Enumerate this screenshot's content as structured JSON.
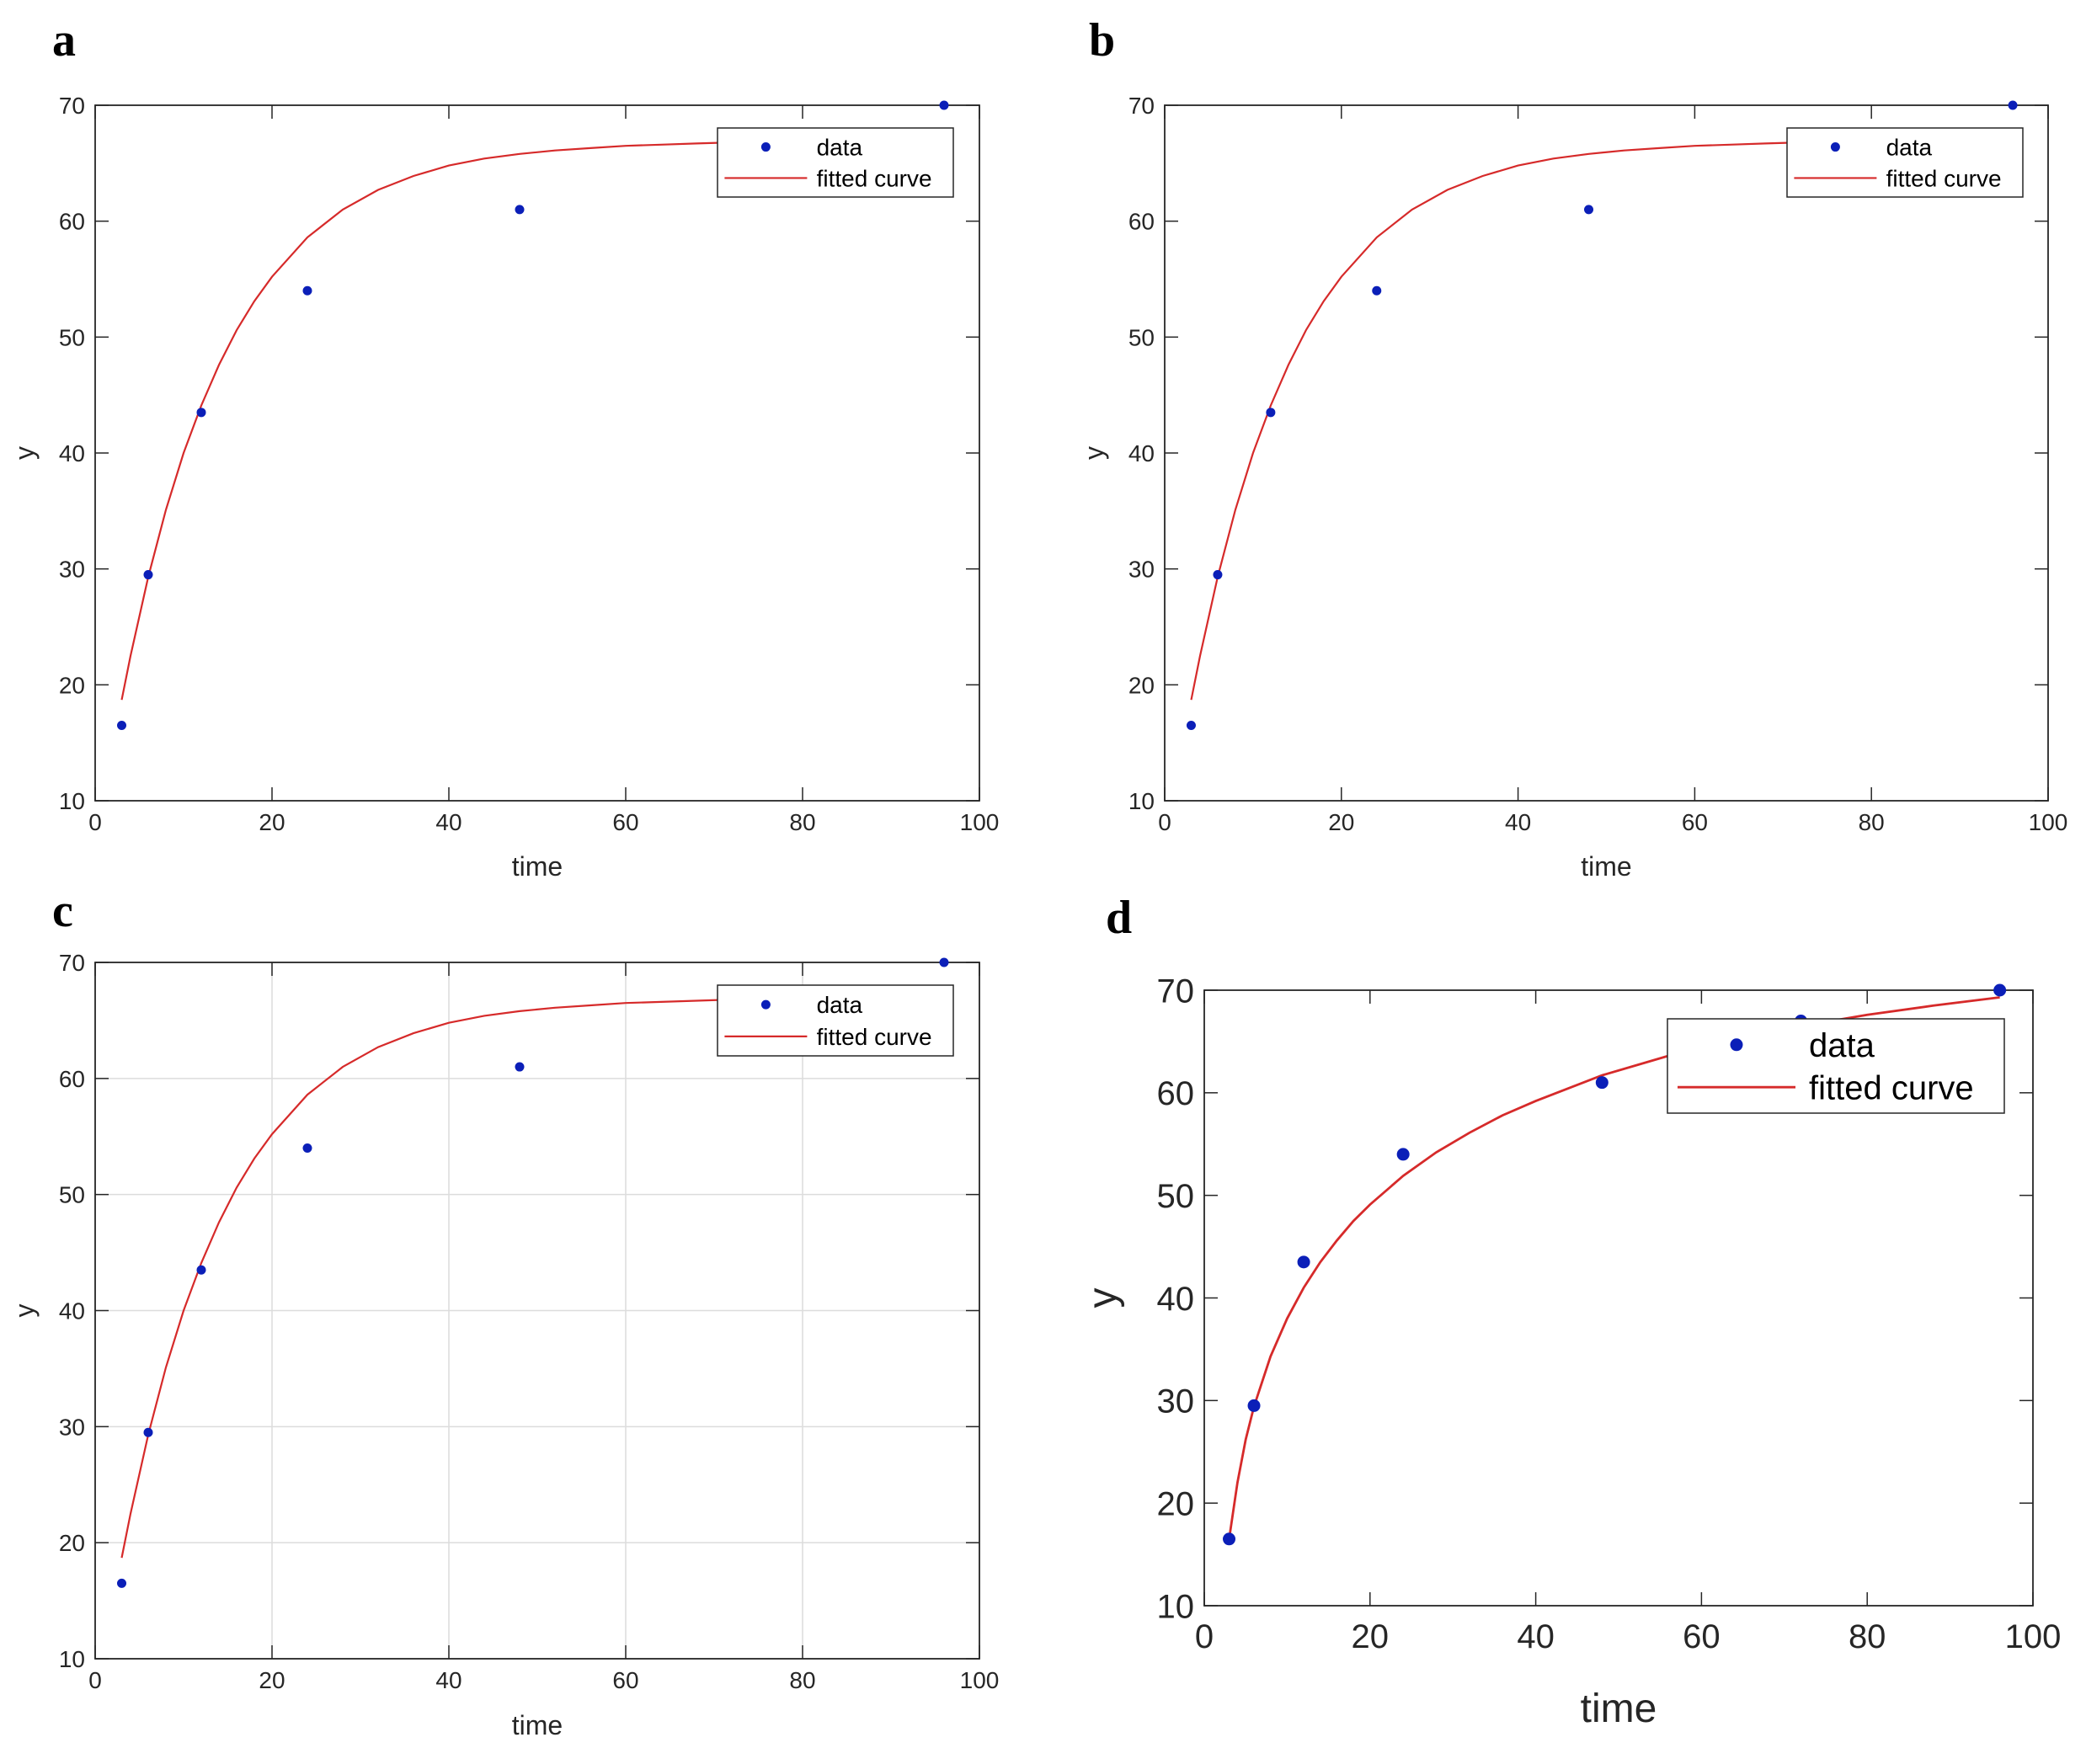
{
  "figure": {
    "panels": [
      "a",
      "b",
      "c",
      "d"
    ]
  },
  "colors": {
    "data": "#0b1fb8",
    "curve": "#d62a2a",
    "axis": "#262626",
    "grid": "#dcdcdc"
  },
  "chart_data": [
    {
      "panel": "a",
      "type": "scatter",
      "xlabel": "time",
      "ylabel": "y",
      "xlim": [
        0,
        100
      ],
      "ylim": [
        10,
        70
      ],
      "xticks": [
        0,
        20,
        40,
        60,
        80,
        100
      ],
      "yticks": [
        10,
        20,
        30,
        40,
        50,
        60,
        70
      ],
      "grid": false,
      "legend": {
        "position": "top-right",
        "entries": [
          "data",
          "fitted curve"
        ]
      },
      "series": [
        {
          "name": "data",
          "kind": "points",
          "x": [
            3,
            6,
            12,
            24,
            48,
            96
          ],
          "y": [
            16.5,
            29.5,
            43.5,
            54,
            61,
            70
          ]
        },
        {
          "name": "fitted curve",
          "kind": "line",
          "x": [
            3,
            4,
            6,
            8,
            10,
            12,
            14,
            16,
            18,
            20,
            24,
            28,
            32,
            36,
            40,
            44,
            48,
            52,
            56,
            60,
            64,
            68,
            72,
            76,
            80,
            84,
            88,
            92,
            96
          ],
          "y": [
            18.7,
            22.5,
            29.3,
            35.1,
            40.0,
            44.1,
            47.6,
            50.6,
            53.1,
            55.2,
            58.6,
            61.0,
            62.7,
            63.9,
            64.8,
            65.4,
            65.8,
            66.1,
            66.3,
            66.5,
            66.6,
            66.7,
            66.8,
            66.8,
            66.9,
            66.9,
            66.9,
            66.9,
            67.0
          ]
        }
      ]
    },
    {
      "panel": "b",
      "type": "scatter",
      "xlabel": "time",
      "ylabel": "y",
      "xlim": [
        0,
        100
      ],
      "ylim": [
        10,
        70
      ],
      "xticks": [
        0,
        20,
        40,
        60,
        80,
        100
      ],
      "yticks": [
        10,
        20,
        30,
        40,
        50,
        60,
        70
      ],
      "grid": false,
      "legend": {
        "position": "top-right",
        "entries": [
          "data",
          "fitted curve"
        ]
      },
      "series": [
        {
          "name": "data",
          "kind": "points",
          "x": [
            3,
            6,
            12,
            24,
            48,
            96
          ],
          "y": [
            16.5,
            29.5,
            43.5,
            54,
            61,
            70
          ]
        },
        {
          "name": "fitted curve",
          "kind": "line",
          "x": [
            3,
            4,
            6,
            8,
            10,
            12,
            14,
            16,
            18,
            20,
            24,
            28,
            32,
            36,
            40,
            44,
            48,
            52,
            56,
            60,
            64,
            68,
            72,
            76,
            80,
            84,
            88,
            92,
            96
          ],
          "y": [
            18.7,
            22.5,
            29.3,
            35.1,
            40.0,
            44.1,
            47.6,
            50.6,
            53.1,
            55.2,
            58.6,
            61.0,
            62.7,
            63.9,
            64.8,
            65.4,
            65.8,
            66.1,
            66.3,
            66.5,
            66.6,
            66.7,
            66.8,
            66.8,
            66.9,
            66.9,
            66.9,
            66.9,
            67.0
          ]
        }
      ]
    },
    {
      "panel": "c",
      "type": "scatter",
      "xlabel": "time",
      "ylabel": "y",
      "xlim": [
        0,
        100
      ],
      "ylim": [
        10,
        70
      ],
      "xticks": [
        0,
        20,
        40,
        60,
        80,
        100
      ],
      "yticks": [
        10,
        20,
        30,
        40,
        50,
        60,
        70
      ],
      "grid": true,
      "legend": {
        "position": "top-right",
        "entries": [
          "data",
          "fitted curve"
        ]
      },
      "series": [
        {
          "name": "data",
          "kind": "points",
          "x": [
            3,
            6,
            12,
            24,
            48,
            96
          ],
          "y": [
            16.5,
            29.5,
            43.5,
            54,
            61,
            70
          ]
        },
        {
          "name": "fitted curve",
          "kind": "line",
          "x": [
            3,
            4,
            6,
            8,
            10,
            12,
            14,
            16,
            18,
            20,
            24,
            28,
            32,
            36,
            40,
            44,
            48,
            52,
            56,
            60,
            64,
            68,
            72,
            76,
            80,
            84,
            88,
            92,
            96
          ],
          "y": [
            18.7,
            22.5,
            29.3,
            35.1,
            40.0,
            44.1,
            47.6,
            50.6,
            53.1,
            55.2,
            58.6,
            61.0,
            62.7,
            63.9,
            64.8,
            65.4,
            65.8,
            66.1,
            66.3,
            66.5,
            66.6,
            66.7,
            66.8,
            66.8,
            66.9,
            66.9,
            66.9,
            66.9,
            67.0
          ]
        }
      ]
    },
    {
      "panel": "d",
      "type": "scatter",
      "xlabel": "time",
      "ylabel": "y",
      "xlim": [
        0,
        100
      ],
      "ylim": [
        10,
        70
      ],
      "xticks": [
        0,
        20,
        40,
        60,
        80,
        100
      ],
      "yticks": [
        10,
        20,
        30,
        40,
        50,
        60,
        70
      ],
      "grid": false,
      "legend": {
        "position": "top-right",
        "entries": [
          "data",
          "fitted curve"
        ]
      },
      "series": [
        {
          "name": "data",
          "kind": "points",
          "x": [
            3,
            6,
            12,
            24,
            48,
            72,
            96
          ],
          "y": [
            16.5,
            29.5,
            43.5,
            54,
            61,
            67,
            70
          ]
        },
        {
          "name": "fitted curve",
          "kind": "line",
          "x": [
            3,
            4,
            5,
            6,
            8,
            10,
            12,
            14,
            16,
            18,
            20,
            24,
            28,
            32,
            36,
            40,
            48,
            56,
            64,
            72,
            80,
            88,
            96
          ],
          "y": [
            16.5,
            22.0,
            26.2,
            29.4,
            34.3,
            38.0,
            41.0,
            43.5,
            45.6,
            47.5,
            49.1,
            51.9,
            54.2,
            56.1,
            57.8,
            59.2,
            61.7,
            63.6,
            65.2,
            66.5,
            67.6,
            68.5,
            69.3
          ]
        }
      ]
    }
  ]
}
